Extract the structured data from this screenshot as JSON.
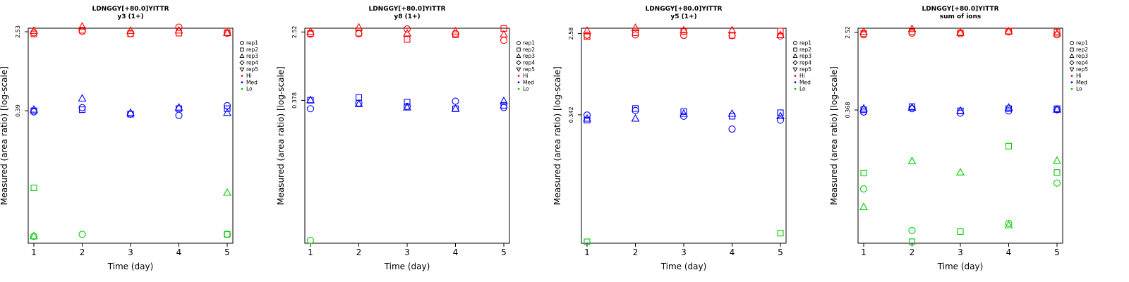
{
  "legend": {
    "entries": [
      {
        "label": "rep1",
        "marker": "circle"
      },
      {
        "label": "rep2",
        "marker": "square"
      },
      {
        "label": "rep3",
        "marker": "triangle-up"
      },
      {
        "label": "rep4",
        "marker": "diamond"
      },
      {
        "label": "rep5",
        "marker": "triangle-down"
      },
      {
        "label": "Hi",
        "marker": "dot",
        "color": "#ff0000"
      },
      {
        "label": "Med",
        "marker": "dot",
        "color": "#0000ff"
      },
      {
        "label": "Lo",
        "marker": "dot",
        "color": "#00cc00"
      }
    ]
  },
  "colors": {
    "Hi": "#ff0000",
    "Med": "#0000ff",
    "Lo": "#00cc00"
  },
  "chart_data": [
    {
      "type": "scatter",
      "title": "LDNGGY[+80.0]YITTR",
      "subtitle": "y3 (1+)",
      "xlabel": "Time (day)",
      "ylabel": "Measured (area ratio) [log-scale]",
      "log_scale": true,
      "grid": false,
      "legend_position": "right",
      "x_ticks": [
        1,
        2,
        3,
        4,
        5
      ],
      "y_ticks": [
        {
          "value": 2.53,
          "label": "2.53"
        },
        {
          "value": 0.39,
          "label": "0.39"
        }
      ],
      "ylim": [
        0.017,
        2.75
      ],
      "points": [
        {
          "x": 1,
          "y": 2.47,
          "level": "Hi",
          "rep": "rep1"
        },
        {
          "x": 1,
          "y": 2.4,
          "level": "Hi",
          "rep": "rep2"
        },
        {
          "x": 1,
          "y": 2.58,
          "level": "Hi",
          "rep": "rep3"
        },
        {
          "x": 2,
          "y": 2.55,
          "level": "Hi",
          "rep": "rep1"
        },
        {
          "x": 2,
          "y": 2.62,
          "level": "Hi",
          "rep": "rep2"
        },
        {
          "x": 2,
          "y": 2.85,
          "level": "Hi",
          "rep": "rep3"
        },
        {
          "x": 3,
          "y": 2.42,
          "level": "Hi",
          "rep": "rep1"
        },
        {
          "x": 3,
          "y": 2.41,
          "level": "Hi",
          "rep": "rep2"
        },
        {
          "x": 3,
          "y": 2.58,
          "level": "Hi",
          "rep": "rep3"
        },
        {
          "x": 4,
          "y": 2.82,
          "level": "Hi",
          "rep": "rep1"
        },
        {
          "x": 4,
          "y": 2.45,
          "level": "Hi",
          "rep": "rep2"
        },
        {
          "x": 4,
          "y": 2.6,
          "level": "Hi",
          "rep": "rep3"
        },
        {
          "x": 5,
          "y": 2.44,
          "level": "Hi",
          "rep": "rep1"
        },
        {
          "x": 5,
          "y": 2.48,
          "level": "Hi",
          "rep": "rep2"
        },
        {
          "x": 5,
          "y": 2.45,
          "level": "Hi",
          "rep": "rep3"
        },
        {
          "x": 1,
          "y": 0.38,
          "level": "Med",
          "rep": "rep1"
        },
        {
          "x": 1,
          "y": 0.39,
          "level": "Med",
          "rep": "rep2"
        },
        {
          "x": 1,
          "y": 0.4,
          "level": "Med",
          "rep": "rep3"
        },
        {
          "x": 2,
          "y": 0.42,
          "level": "Med",
          "rep": "rep1"
        },
        {
          "x": 2,
          "y": 0.4,
          "level": "Med",
          "rep": "rep2"
        },
        {
          "x": 2,
          "y": 0.52,
          "level": "Med",
          "rep": "rep3"
        },
        {
          "x": 3,
          "y": 0.36,
          "level": "Med",
          "rep": "rep1"
        },
        {
          "x": 3,
          "y": 0.36,
          "level": "Med",
          "rep": "rep2"
        },
        {
          "x": 3,
          "y": 0.37,
          "level": "Med",
          "rep": "rep3"
        },
        {
          "x": 4,
          "y": 0.35,
          "level": "Med",
          "rep": "rep1"
        },
        {
          "x": 4,
          "y": 0.41,
          "level": "Med",
          "rep": "rep2"
        },
        {
          "x": 4,
          "y": 0.42,
          "level": "Med",
          "rep": "rep3"
        },
        {
          "x": 5,
          "y": 0.44,
          "level": "Med",
          "rep": "rep1"
        },
        {
          "x": 5,
          "y": 0.41,
          "level": "Med",
          "rep": "rep2"
        },
        {
          "x": 5,
          "y": 0.37,
          "level": "Med",
          "rep": "rep3"
        },
        {
          "x": 1,
          "y": 0.02,
          "level": "Lo",
          "rep": "rep1"
        },
        {
          "x": 1,
          "y": 0.063,
          "level": "Lo",
          "rep": "rep2"
        },
        {
          "x": 1,
          "y": 0.02,
          "level": "Lo",
          "rep": "rep3"
        },
        {
          "x": 2,
          "y": 0.021,
          "level": "Lo",
          "rep": "rep1"
        },
        {
          "x": 5,
          "y": 0.021,
          "level": "Lo",
          "rep": "rep1"
        },
        {
          "x": 5,
          "y": 0.021,
          "level": "Lo",
          "rep": "rep2"
        },
        {
          "x": 5,
          "y": 0.056,
          "level": "Lo",
          "rep": "rep3"
        }
      ]
    },
    {
      "type": "scatter",
      "title": "LDNGGY[+80.0]YITTR",
      "subtitle": "y8 (1+)",
      "xlabel": "Time (day)",
      "ylabel": "Measured (area ratio) [log-scale]",
      "log_scale": true,
      "grid": false,
      "legend_position": "right",
      "x_ticks": [
        1,
        2,
        3,
        4,
        5
      ],
      "y_ticks": [
        {
          "value": 2.52,
          "label": "2.52"
        },
        {
          "value": 0.378,
          "label": "0.378"
        }
      ],
      "ylim": [
        0.0072,
        2.8
      ],
      "points": [
        {
          "x": 1,
          "y": 2.37,
          "level": "Hi",
          "rep": "rep1"
        },
        {
          "x": 1,
          "y": 2.42,
          "level": "Hi",
          "rep": "rep2"
        },
        {
          "x": 1,
          "y": 2.53,
          "level": "Hi",
          "rep": "rep3"
        },
        {
          "x": 2,
          "y": 2.4,
          "level": "Hi",
          "rep": "rep1"
        },
        {
          "x": 2,
          "y": 2.44,
          "level": "Hi",
          "rep": "rep2"
        },
        {
          "x": 2,
          "y": 2.85,
          "level": "Hi",
          "rep": "rep3"
        },
        {
          "x": 3,
          "y": 2.74,
          "level": "Hi",
          "rep": "rep1"
        },
        {
          "x": 3,
          "y": 2.05,
          "level": "Hi",
          "rep": "rep2"
        },
        {
          "x": 3,
          "y": 2.42,
          "level": "Hi",
          "rep": "rep3"
        },
        {
          "x": 4,
          "y": 2.4,
          "level": "Hi",
          "rep": "rep1"
        },
        {
          "x": 4,
          "y": 2.34,
          "level": "Hi",
          "rep": "rep2"
        },
        {
          "x": 4,
          "y": 2.55,
          "level": "Hi",
          "rep": "rep3"
        },
        {
          "x": 5,
          "y": 2.0,
          "level": "Hi",
          "rep": "rep1"
        },
        {
          "x": 5,
          "y": 2.78,
          "level": "Hi",
          "rep": "rep2"
        },
        {
          "x": 5,
          "y": 2.35,
          "level": "Hi",
          "rep": "rep3"
        },
        {
          "x": 1,
          "y": 0.3,
          "level": "Med",
          "rep": "rep1"
        },
        {
          "x": 1,
          "y": 0.38,
          "level": "Med",
          "rep": "rep2"
        },
        {
          "x": 1,
          "y": 0.38,
          "level": "Med",
          "rep": "rep3"
        },
        {
          "x": 2,
          "y": 0.35,
          "level": "Med",
          "rep": "rep1"
        },
        {
          "x": 2,
          "y": 0.41,
          "level": "Med",
          "rep": "rep2"
        },
        {
          "x": 2,
          "y": 0.34,
          "level": "Med",
          "rep": "rep3"
        },
        {
          "x": 3,
          "y": 0.32,
          "level": "Med",
          "rep": "rep1"
        },
        {
          "x": 3,
          "y": 0.36,
          "level": "Med",
          "rep": "rep2"
        },
        {
          "x": 3,
          "y": 0.31,
          "level": "Med",
          "rep": "rep3"
        },
        {
          "x": 4,
          "y": 0.37,
          "level": "Med",
          "rep": "rep1"
        },
        {
          "x": 4,
          "y": 0.3,
          "level": "Med",
          "rep": "rep2"
        },
        {
          "x": 4,
          "y": 0.3,
          "level": "Med",
          "rep": "rep3"
        },
        {
          "x": 5,
          "y": 0.31,
          "level": "Med",
          "rep": "rep1"
        },
        {
          "x": 5,
          "y": 0.33,
          "level": "Med",
          "rep": "rep2"
        },
        {
          "x": 5,
          "y": 0.37,
          "level": "Med",
          "rep": "rep3"
        },
        {
          "x": 1,
          "y": 0.0078,
          "level": "Lo",
          "rep": "rep1"
        }
      ]
    },
    {
      "type": "scatter",
      "title": "LDNGGY[+80.0]YITTR",
      "subtitle": "y5 (1+)",
      "xlabel": "Time (day)",
      "ylabel": "Measured (area ratio) [log-scale]",
      "log_scale": true,
      "grid": false,
      "legend_position": "right",
      "x_ticks": [
        1,
        2,
        3,
        4,
        5
      ],
      "y_ticks": [
        {
          "value": 2.58,
          "label": "2.58"
        },
        {
          "value": 0.342,
          "label": "0.342"
        }
      ],
      "ylim": [
        0.014,
        2.95
      ],
      "points": [
        {
          "x": 1,
          "y": 2.48,
          "level": "Hi",
          "rep": "rep1"
        },
        {
          "x": 1,
          "y": 2.38,
          "level": "Hi",
          "rep": "rep2"
        },
        {
          "x": 1,
          "y": 2.76,
          "level": "Hi",
          "rep": "rep3"
        },
        {
          "x": 2,
          "y": 2.5,
          "level": "Hi",
          "rep": "rep1"
        },
        {
          "x": 2,
          "y": 2.64,
          "level": "Hi",
          "rep": "rep2"
        },
        {
          "x": 2,
          "y": 2.96,
          "level": "Hi",
          "rep": "rep3"
        },
        {
          "x": 3,
          "y": 2.47,
          "level": "Hi",
          "rep": "rep1"
        },
        {
          "x": 3,
          "y": 2.72,
          "level": "Hi",
          "rep": "rep2"
        },
        {
          "x": 3,
          "y": 2.79,
          "level": "Hi",
          "rep": "rep3"
        },
        {
          "x": 4,
          "y": 2.45,
          "level": "Hi",
          "rep": "rep1"
        },
        {
          "x": 4,
          "y": 2.47,
          "level": "Hi",
          "rep": "rep2"
        },
        {
          "x": 4,
          "y": 2.79,
          "level": "Hi",
          "rep": "rep3"
        },
        {
          "x": 5,
          "y": 2.43,
          "level": "Hi",
          "rep": "rep1"
        },
        {
          "x": 5,
          "y": 2.75,
          "level": "Hi",
          "rep": "rep2"
        },
        {
          "x": 5,
          "y": 2.48,
          "level": "Hi",
          "rep": "rep3"
        },
        {
          "x": 1,
          "y": 0.34,
          "level": "Med",
          "rep": "rep1"
        },
        {
          "x": 1,
          "y": 0.3,
          "level": "Med",
          "rep": "rep2"
        },
        {
          "x": 1,
          "y": 0.31,
          "level": "Med",
          "rep": "rep3"
        },
        {
          "x": 2,
          "y": 0.38,
          "level": "Med",
          "rep": "rep1"
        },
        {
          "x": 2,
          "y": 0.4,
          "level": "Med",
          "rep": "rep2"
        },
        {
          "x": 2,
          "y": 0.31,
          "level": "Med",
          "rep": "rep3"
        },
        {
          "x": 3,
          "y": 0.33,
          "level": "Med",
          "rep": "rep1"
        },
        {
          "x": 3,
          "y": 0.37,
          "level": "Med",
          "rep": "rep2"
        },
        {
          "x": 3,
          "y": 0.35,
          "level": "Med",
          "rep": "rep3"
        },
        {
          "x": 4,
          "y": 0.24,
          "level": "Med",
          "rep": "rep1"
        },
        {
          "x": 4,
          "y": 0.33,
          "level": "Med",
          "rep": "rep2"
        },
        {
          "x": 4,
          "y": 0.35,
          "level": "Med",
          "rep": "rep3"
        },
        {
          "x": 5,
          "y": 0.3,
          "level": "Med",
          "rep": "rep1"
        },
        {
          "x": 5,
          "y": 0.36,
          "level": "Med",
          "rep": "rep2"
        },
        {
          "x": 5,
          "y": 0.33,
          "level": "Med",
          "rep": "rep3"
        },
        {
          "x": 1,
          "y": 0.0145,
          "level": "Lo",
          "rep": "rep2"
        },
        {
          "x": 5,
          "y": 0.018,
          "level": "Lo",
          "rep": "rep2"
        }
      ]
    },
    {
      "type": "scatter",
      "title": "LDNGGY[+80.0]YITTR",
      "subtitle": "sum of ions",
      "xlabel": "Time (day)",
      "ylabel": "Measured (area ratio) [log-scale]",
      "log_scale": true,
      "grid": false,
      "legend_position": "right",
      "x_ticks": [
        1,
        2,
        3,
        4,
        5
      ],
      "y_ticks": [
        {
          "value": 2.52,
          "label": "2.52"
        },
        {
          "value": 0.368,
          "label": "0.368"
        }
      ],
      "ylim": [
        0.0135,
        2.8
      ],
      "points": [
        {
          "x": 1,
          "y": 2.38,
          "level": "Hi",
          "rep": "rep1"
        },
        {
          "x": 1,
          "y": 2.45,
          "level": "Hi",
          "rep": "rep2"
        },
        {
          "x": 1,
          "y": 2.55,
          "level": "Hi",
          "rep": "rep3"
        },
        {
          "x": 2,
          "y": 2.48,
          "level": "Hi",
          "rep": "rep1"
        },
        {
          "x": 2,
          "y": 2.56,
          "level": "Hi",
          "rep": "rep2"
        },
        {
          "x": 2,
          "y": 2.74,
          "level": "Hi",
          "rep": "rep3"
        },
        {
          "x": 3,
          "y": 2.44,
          "level": "Hi",
          "rep": "rep1"
        },
        {
          "x": 3,
          "y": 2.5,
          "level": "Hi",
          "rep": "rep2"
        },
        {
          "x": 3,
          "y": 2.5,
          "level": "Hi",
          "rep": "rep3"
        },
        {
          "x": 4,
          "y": 2.55,
          "level": "Hi",
          "rep": "rep1"
        },
        {
          "x": 4,
          "y": 2.6,
          "level": "Hi",
          "rep": "rep2"
        },
        {
          "x": 4,
          "y": 2.58,
          "level": "Hi",
          "rep": "rep3"
        },
        {
          "x": 5,
          "y": 2.38,
          "level": "Hi",
          "rep": "rep1"
        },
        {
          "x": 5,
          "y": 2.55,
          "level": "Hi",
          "rep": "rep2"
        },
        {
          "x": 5,
          "y": 2.45,
          "level": "Hi",
          "rep": "rep3"
        },
        {
          "x": 1,
          "y": 0.35,
          "level": "Med",
          "rep": "rep1"
        },
        {
          "x": 1,
          "y": 0.37,
          "level": "Med",
          "rep": "rep2"
        },
        {
          "x": 1,
          "y": 0.38,
          "level": "Med",
          "rep": "rep3"
        },
        {
          "x": 2,
          "y": 0.38,
          "level": "Med",
          "rep": "rep1"
        },
        {
          "x": 2,
          "y": 0.4,
          "level": "Med",
          "rep": "rep2"
        },
        {
          "x": 2,
          "y": 0.39,
          "level": "Med",
          "rep": "rep3"
        },
        {
          "x": 3,
          "y": 0.34,
          "level": "Med",
          "rep": "rep1"
        },
        {
          "x": 3,
          "y": 0.36,
          "level": "Med",
          "rep": "rep2"
        },
        {
          "x": 3,
          "y": 0.36,
          "level": "Med",
          "rep": "rep3"
        },
        {
          "x": 4,
          "y": 0.36,
          "level": "Med",
          "rep": "rep1"
        },
        {
          "x": 4,
          "y": 0.38,
          "level": "Med",
          "rep": "rep2"
        },
        {
          "x": 4,
          "y": 0.39,
          "level": "Med",
          "rep": "rep3"
        },
        {
          "x": 5,
          "y": 0.37,
          "level": "Med",
          "rep": "rep1"
        },
        {
          "x": 5,
          "y": 0.38,
          "level": "Med",
          "rep": "rep2"
        },
        {
          "x": 5,
          "y": 0.37,
          "level": "Med",
          "rep": "rep3"
        },
        {
          "x": 1,
          "y": 0.052,
          "level": "Lo",
          "rep": "rep1"
        },
        {
          "x": 1,
          "y": 0.077,
          "level": "Lo",
          "rep": "rep2"
        },
        {
          "x": 1,
          "y": 0.033,
          "level": "Lo",
          "rep": "rep3"
        },
        {
          "x": 2,
          "y": 0.0185,
          "level": "Lo",
          "rep": "rep1"
        },
        {
          "x": 2,
          "y": 0.014,
          "level": "Lo",
          "rep": "rep2"
        },
        {
          "x": 2,
          "y": 0.103,
          "level": "Lo",
          "rep": "rep3"
        },
        {
          "x": 3,
          "y": 0.018,
          "level": "Lo",
          "rep": "rep2"
        },
        {
          "x": 3,
          "y": 0.078,
          "level": "Lo",
          "rep": "rep3"
        },
        {
          "x": 4,
          "y": 0.022,
          "level": "Lo",
          "rep": "rep1"
        },
        {
          "x": 4,
          "y": 0.15,
          "level": "Lo",
          "rep": "rep2"
        },
        {
          "x": 4,
          "y": 0.021,
          "level": "Lo",
          "rep": "rep3"
        },
        {
          "x": 5,
          "y": 0.06,
          "level": "Lo",
          "rep": "rep1"
        },
        {
          "x": 5,
          "y": 0.078,
          "level": "Lo",
          "rep": "rep2"
        },
        {
          "x": 5,
          "y": 0.104,
          "level": "Lo",
          "rep": "rep3"
        }
      ]
    }
  ]
}
